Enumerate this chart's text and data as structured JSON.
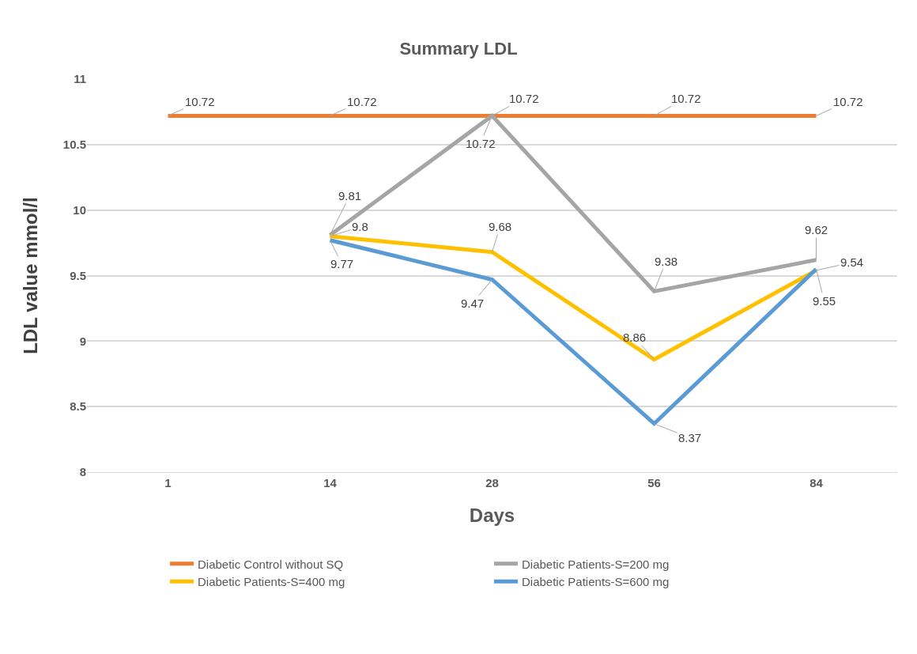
{
  "chart_data": {
    "type": "line",
    "title": "Summary LDL",
    "xlabel": "Days",
    "ylabel": "LDL value mmol/l",
    "categories": [
      "1",
      "14",
      "28",
      "56",
      "84"
    ],
    "series": [
      {
        "name": "Diabetic Control without SQ",
        "color": "#ed7d31",
        "values": [
          10.72,
          10.72,
          10.72,
          10.72,
          10.72
        ]
      },
      {
        "name": "Diabetic Patients-S=200 mg",
        "color": "#a5a5a5",
        "values": [
          null,
          9.81,
          10.72,
          9.38,
          9.62
        ]
      },
      {
        "name": "Diabetic Patients-S=400 mg",
        "color": "#ffc000",
        "values": [
          null,
          9.8,
          9.68,
          8.86,
          9.54
        ]
      },
      {
        "name": "Diabetic Patients-S=600 mg",
        "color": "#5b9bd5",
        "values": [
          null,
          9.77,
          9.47,
          8.37,
          9.55
        ]
      }
    ],
    "ylim": [
      8,
      11
    ],
    "yticks": [
      8,
      8.5,
      9,
      9.5,
      10,
      10.5,
      11
    ],
    "grid": "y",
    "legend": "bottom",
    "marker": "none",
    "line_style": "solid",
    "data_labels": true
  }
}
